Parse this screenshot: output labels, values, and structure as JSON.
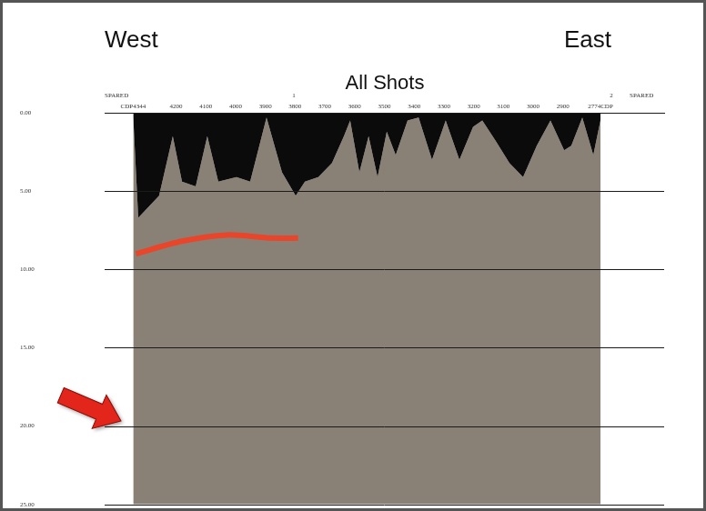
{
  "chart_data": {
    "type": "line",
    "title": "All Shots",
    "color": "#8a8176",
    "annotations": [
      {
        "text": "West",
        "position": "left"
      },
      {
        "text": "East",
        "position": "right"
      },
      {
        "text": "SPARED",
        "x": 4400
      },
      {
        "text": "1",
        "x": 3804
      },
      {
        "text": "2",
        "x": 2737
      },
      {
        "text": "SPARED",
        "x": 2636
      }
    ],
    "xlim": [
      4440,
      2560
    ],
    "xticks": [
      {
        "value": 4344,
        "label": "CDP4344"
      },
      4200,
      4100,
      4000,
      3900,
      3800,
      3700,
      3600,
      3500,
      3400,
      3300,
      3200,
      3100,
      3000,
      2900,
      {
        "value": 2774,
        "label": "2774CDP"
      }
    ],
    "ylim": [
      25,
      0
    ],
    "yticks": [
      {
        "value": 0,
        "label": "0.00"
      },
      {
        "value": 5,
        "label": "5.00"
      },
      {
        "value": 10,
        "label": "10.00"
      },
      {
        "value": 15,
        "label": "15.00"
      },
      {
        "value": 20,
        "label": "20.00"
      },
      {
        "value": 25,
        "label": "25.00"
      }
    ],
    "grid": true,
    "series": [
      {
        "type": "area",
        "color": "#0b0b0b",
        "x": [
          4344,
          4327,
          4257,
          4211,
          4180,
          4134,
          4095,
          4058,
          3997,
          3951,
          3896,
          3844,
          3798,
          3767,
          3722,
          3676,
          3636,
          3615,
          3584,
          3553,
          3523,
          3492,
          3462,
          3422,
          3385,
          3340,
          3294,
          3248,
          3202,
          3171,
          3126,
          3080,
          3034,
          2988,
          2942,
          2896,
          2872,
          2835,
          2798,
          2774
        ],
        "values": [
          0.2,
          6.7,
          5.3,
          1.5,
          4.4,
          4.7,
          1.5,
          4.4,
          4.1,
          4.4,
          0.3,
          3.8,
          5.3,
          4.4,
          4.1,
          3.2,
          1.5,
          0.5,
          3.8,
          1.5,
          4.1,
          1.2,
          2.7,
          0.5,
          0.3,
          3.0,
          0.5,
          3.0,
          0.9,
          0.5,
          1.8,
          3.2,
          4.1,
          2.1,
          0.5,
          2.4,
          2.1,
          0.3,
          2.7,
          0.5
        ]
      },
      {
        "type": "line",
        "color": "#e8452a",
        "x": [
          4335,
          4180,
          4030,
          3880,
          3790
        ],
        "values": [
          9.0,
          8.2,
          7.8,
          8.0,
          8.0
        ]
      }
    ]
  }
}
